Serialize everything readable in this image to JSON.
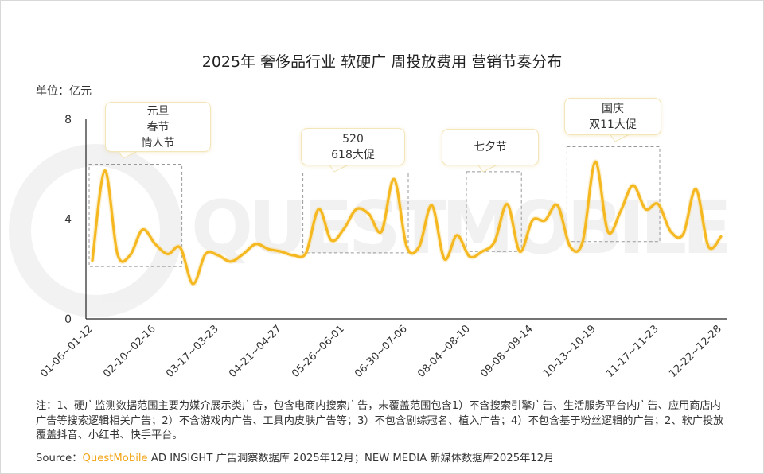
{
  "title": "2025年 奢侈品行业 软硬广 周投放费用  营销节奏分布",
  "unit_label": "单位：亿元",
  "chart_data": {
    "type": "line",
    "title": "2025年 奢侈品行业 软硬广 周投放费用  营销节奏分布",
    "ylabel": "单位：亿元",
    "xlabel": "",
    "ylim": [
      0,
      8
    ],
    "y_ticks": [
      "0",
      "4",
      "8"
    ],
    "x_tick_labels": [
      "01-06~01-12",
      "02-10~02-16",
      "03-17~03-23",
      "04-21~04-27",
      "05-26~06-01",
      "06-30~07-06",
      "08-04~08-10",
      "09-08~09-14",
      "10-13~10-19",
      "11-17~11-23",
      "12-22~12-28"
    ],
    "x_tick_every_weeks": 5,
    "series": [
      {
        "name": "周投放费用",
        "color": "#f5b820",
        "values": [
          2.33,
          5.94,
          2.6,
          2.55,
          3.58,
          3.0,
          2.6,
          2.85,
          1.4,
          2.6,
          2.55,
          2.3,
          2.6,
          3.0,
          2.8,
          2.7,
          2.55,
          2.65,
          4.4,
          3.15,
          3.6,
          4.4,
          4.2,
          3.5,
          5.6,
          2.9,
          2.9,
          4.55,
          2.4,
          3.35,
          2.5,
          2.7,
          3.1,
          4.6,
          2.7,
          3.95,
          3.95,
          4.55,
          2.9,
          3.1,
          6.3,
          3.5,
          4.3,
          5.35,
          4.4,
          4.6,
          3.5,
          3.4,
          5.2,
          2.9,
          3.3
        ]
      }
    ],
    "annotations": [
      {
        "lines": [
          "元旦",
          "春节",
          "情人节"
        ],
        "week_range": [
          0,
          7
        ],
        "value_range": [
          2.1,
          6.2
        ]
      },
      {
        "lines": [
          "520",
          "618大促"
        ],
        "week_range": [
          17,
          25
        ],
        "value_range": [
          2.65,
          5.85
        ]
      },
      {
        "lines": [
          "七夕节"
        ],
        "week_range": [
          30,
          34
        ],
        "value_range": [
          2.7,
          5.9
        ]
      },
      {
        "lines": [
          "国庆",
          "双11大促"
        ],
        "week_range": [
          38,
          45
        ],
        "value_range": [
          3.1,
          6.9
        ]
      }
    ],
    "grid": false,
    "legend": "none"
  },
  "note": "注：1、硬广监测数据范围主要为媒介展示类广告，包含电商内搜索广告，未覆盖范围包含1）不含搜索引擎广告、生活服务平台内广告、应用商店内广告等搜索逻辑相关广告；2）不含游戏内广告、工具内皮肤广告等；3）不包含剧综冠名、植入广告；4）不包含基于粉丝逻辑的广告；2、软广投放覆盖抖音、小红书、快手平台。",
  "source": {
    "prefix": "Source：",
    "brand": "QuestMobile",
    "rest": " AD INSIGHT 广告洞察数据库 2025年12月；NEW MEDIA 新媒体数据库2025年12月"
  },
  "watermark": "QUESTMOBILE"
}
